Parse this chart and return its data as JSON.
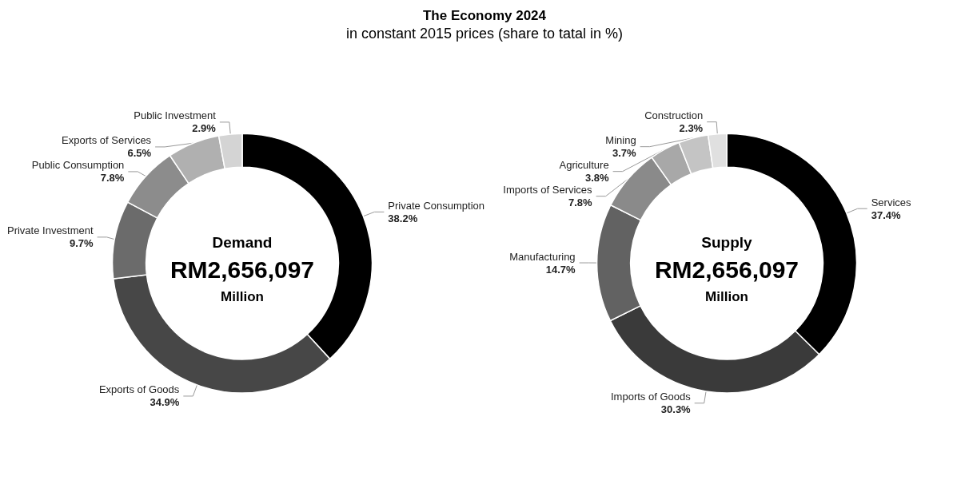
{
  "chart_data": [
    {
      "type": "donut",
      "title": "The Economy 2024",
      "subtitle": "in constant 2015 prices (share to tatal in %)",
      "categories": [
        "Private Consumption",
        "Exports of Goods",
        "Private Investment",
        "Public Consumption",
        "Exports of Services",
        "Public Investment"
      ],
      "values": [
        38.2,
        34.9,
        9.7,
        7.8,
        6.5,
        2.9
      ],
      "value_labels": [
        "38.2%",
        "34.9%",
        "9.7%",
        "7.8%",
        "6.5%",
        "2.9%"
      ],
      "colors": [
        "#000000",
        "#474747",
        "#6b6b6b",
        "#8c8c8c",
        "#b0b0b0",
        "#d4d4d4"
      ],
      "annotations": [
        "Demand",
        "RM2,656,097",
        "Million"
      ],
      "legend": false
    },
    {
      "type": "donut",
      "categories": [
        "Services",
        "Imports of Goods",
        "Manufacturing",
        "Imports of Services",
        "Agriculture",
        "Mining",
        "Construction"
      ],
      "values": [
        37.4,
        30.3,
        14.7,
        7.8,
        3.8,
        3.7,
        2.3
      ],
      "value_labels": [
        "37.4%",
        "30.3%",
        "14.7%",
        "7.8%",
        "3.8%",
        "3.7%",
        "2.3%"
      ],
      "colors": [
        "#000000",
        "#3a3a3a",
        "#626262",
        "#8a8a8a",
        "#a8a8a8",
        "#c4c4c4",
        "#e0e0e0"
      ],
      "annotations": [
        "Supply",
        "RM2,656,097",
        "Million"
      ],
      "legend": false
    }
  ]
}
